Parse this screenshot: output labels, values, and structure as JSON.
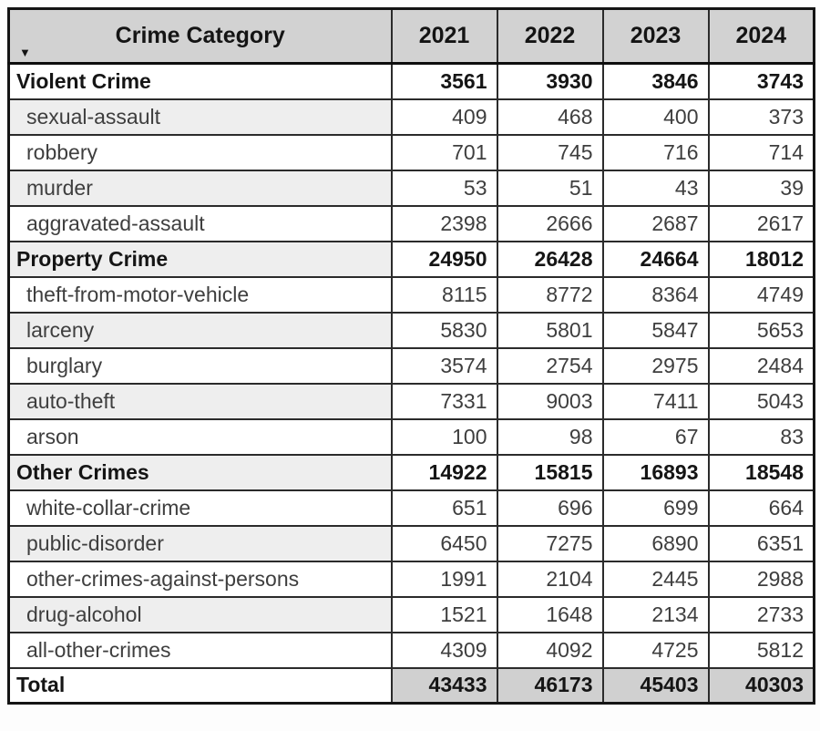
{
  "icons": {
    "sort_dropdown": "▼"
  },
  "colors": {
    "header_bg": "#d2d2d2",
    "stripe_bg": "#eeeeee",
    "total_value_bg": "#d0d0d0",
    "border": "#2b2b2b",
    "bold_text": "#151515",
    "regular_text": "#3e3e3e"
  },
  "chart_data": {
    "type": "table",
    "columns": [
      "Crime Category",
      "2021",
      "2022",
      "2023",
      "2024"
    ],
    "rows": [
      {
        "label": "Violent Crime",
        "kind": "category",
        "values": [
          3561,
          3930,
          3846,
          3743
        ]
      },
      {
        "label": "sexual-assault",
        "kind": "sub",
        "values": [
          409,
          468,
          400,
          373
        ]
      },
      {
        "label": "robbery",
        "kind": "sub",
        "values": [
          701,
          745,
          716,
          714
        ]
      },
      {
        "label": "murder",
        "kind": "sub",
        "values": [
          53,
          51,
          43,
          39
        ]
      },
      {
        "label": "aggravated-assault",
        "kind": "sub",
        "values": [
          2398,
          2666,
          2687,
          2617
        ]
      },
      {
        "label": "Property Crime",
        "kind": "category",
        "values": [
          24950,
          26428,
          24664,
          18012
        ]
      },
      {
        "label": "theft-from-motor-vehicle",
        "kind": "sub",
        "values": [
          8115,
          8772,
          8364,
          4749
        ]
      },
      {
        "label": "larceny",
        "kind": "sub",
        "values": [
          5830,
          5801,
          5847,
          5653
        ]
      },
      {
        "label": "burglary",
        "kind": "sub",
        "values": [
          3574,
          2754,
          2975,
          2484
        ]
      },
      {
        "label": "auto-theft",
        "kind": "sub",
        "values": [
          7331,
          9003,
          7411,
          5043
        ]
      },
      {
        "label": "arson",
        "kind": "sub",
        "values": [
          100,
          98,
          67,
          83
        ]
      },
      {
        "label": "Other Crimes",
        "kind": "category",
        "values": [
          14922,
          15815,
          16893,
          18548
        ]
      },
      {
        "label": "white-collar-crime",
        "kind": "sub",
        "values": [
          651,
          696,
          699,
          664
        ]
      },
      {
        "label": "public-disorder",
        "kind": "sub",
        "values": [
          6450,
          7275,
          6890,
          6351
        ]
      },
      {
        "label": "other-crimes-against-persons",
        "kind": "sub",
        "values": [
          1991,
          2104,
          2445,
          2988
        ]
      },
      {
        "label": "drug-alcohol",
        "kind": "sub",
        "values": [
          1521,
          1648,
          2134,
          2733
        ]
      },
      {
        "label": "all-other-crimes",
        "kind": "sub",
        "values": [
          4309,
          4092,
          4725,
          5812
        ]
      },
      {
        "label": "Total",
        "kind": "total",
        "values": [
          43433,
          46173,
          45403,
          40303
        ]
      }
    ]
  }
}
